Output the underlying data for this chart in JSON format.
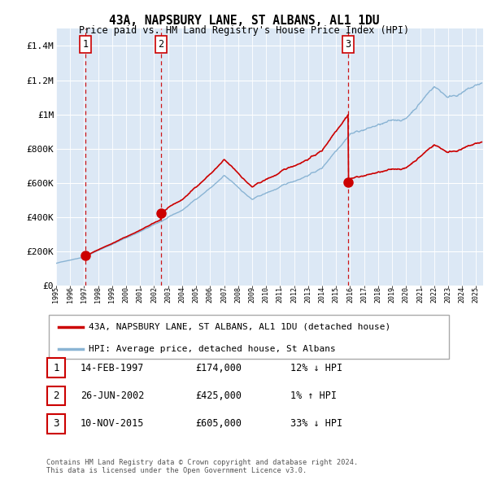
{
  "title": "43A, NAPSBURY LANE, ST ALBANS, AL1 1DU",
  "subtitle": "Price paid vs. HM Land Registry's House Price Index (HPI)",
  "ylim": [
    0,
    1500000
  ],
  "yticks": [
    0,
    200000,
    400000,
    600000,
    800000,
    1000000,
    1200000,
    1400000
  ],
  "ytick_labels": [
    "£0",
    "£200K",
    "£400K",
    "£600K",
    "£800K",
    "£1M",
    "£1.2M",
    "£1.4M"
  ],
  "plot_bg": "#dce8f5",
  "grid_color": "#ffffff",
  "trans_dates": [
    1997.11,
    2002.49,
    2015.86
  ],
  "trans_prices": [
    174000,
    425000,
    605000
  ],
  "trans_labels": [
    "1",
    "2",
    "3"
  ],
  "trans_vline_color": "#cc0000",
  "trans_dot_color": "#cc0000",
  "hpi_line_color": "#8ab4d4",
  "price_line_color": "#cc0000",
  "legend_items": [
    "43A, NAPSBURY LANE, ST ALBANS, AL1 1DU (detached house)",
    "HPI: Average price, detached house, St Albans"
  ],
  "table_rows": [
    [
      "1",
      "14-FEB-1997",
      "£174,000",
      "12% ↓ HPI"
    ],
    [
      "2",
      "26-JUN-2002",
      "£425,000",
      "1% ↑ HPI"
    ],
    [
      "3",
      "10-NOV-2015",
      "£605,000",
      "33% ↓ HPI"
    ]
  ],
  "footer": "Contains HM Land Registry data © Crown copyright and database right 2024.\nThis data is licensed under the Open Government Licence v3.0.",
  "xmin": 1995.0,
  "xmax": 2025.5,
  "seed": 42
}
